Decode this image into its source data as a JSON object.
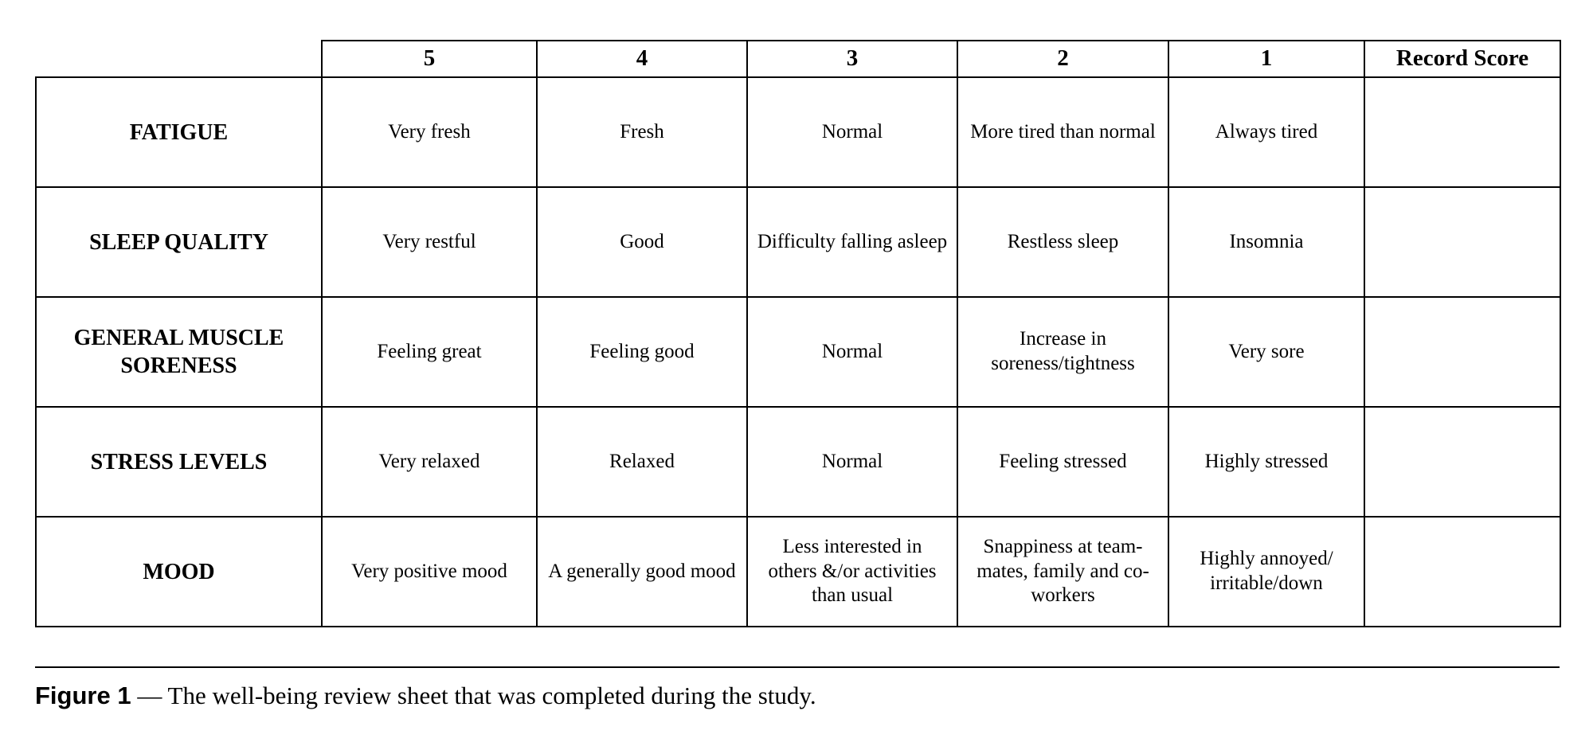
{
  "table": {
    "headers": [
      "5",
      "4",
      "3",
      "2",
      "1",
      "Record Score"
    ],
    "rows": [
      {
        "label": "FATIGUE",
        "cells": [
          "Very fresh",
          "Fresh",
          "Normal",
          "More tired than normal",
          "Always tired"
        ],
        "score": ""
      },
      {
        "label": "SLEEP QUALITY",
        "cells": [
          "Very restful",
          "Good",
          "Difficulty falling asleep",
          "Restless sleep",
          "Insomnia"
        ],
        "score": ""
      },
      {
        "label": "GENERAL MUSCLE SORENESS",
        "cells": [
          "Feeling great",
          "Feeling good",
          "Normal",
          "Increase in soreness/tightness",
          "Very sore"
        ],
        "score": ""
      },
      {
        "label": "STRESS LEVELS",
        "cells": [
          "Very relaxed",
          "Relaxed",
          "Normal",
          "Feeling stressed",
          "Highly stressed"
        ],
        "score": ""
      },
      {
        "label": "MOOD",
        "cells": [
          "Very positive mood",
          "A generally good mood",
          "Less interested in others &/or activities than usual",
          "Snappiness at team-mates, family and co-workers",
          "Highly annoyed/ irritable/down"
        ],
        "score": ""
      }
    ]
  },
  "caption": {
    "label": "Figure 1",
    "text": " — The well-being review sheet that was completed during the study."
  }
}
